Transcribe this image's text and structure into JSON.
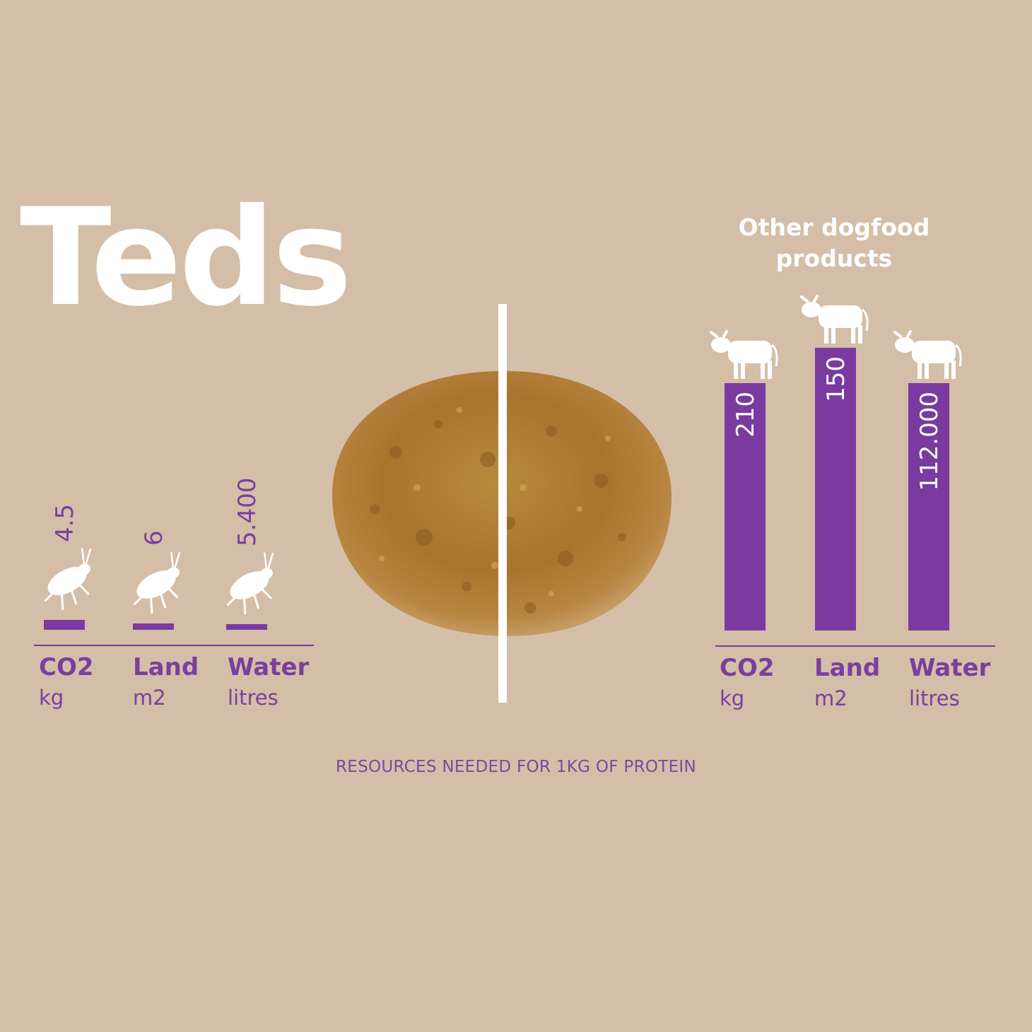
{
  "brand": {
    "logo_text": "Teds"
  },
  "right_title": "Other dogfood products",
  "footer": "RESOURCES NEEDED FOR 1KG OF PROTEIN",
  "colors": {
    "background": "#d4bea8",
    "bar": "#7b3a9f",
    "label": "#7a3f9e",
    "icon": "#ffffff"
  },
  "chart_data": [
    {
      "type": "bar",
      "categories": [
        "CO2",
        "Land",
        "Water"
      ],
      "units": [
        "kg",
        "m2",
        "litres"
      ],
      "values": [
        4.5,
        6,
        5400
      ],
      "value_labels": [
        "4.5",
        "6",
        "5.400"
      ],
      "icon": "insect-icon"
    },
    {
      "type": "bar",
      "title": "Other dogfood products",
      "categories": [
        "CO2",
        "Land",
        "Water"
      ],
      "units": [
        "kg",
        "m2",
        "litres"
      ],
      "values": [
        210,
        150,
        112000
      ],
      "value_labels": [
        "210",
        "150",
        "112.000"
      ],
      "icon": "cow-icon"
    }
  ]
}
